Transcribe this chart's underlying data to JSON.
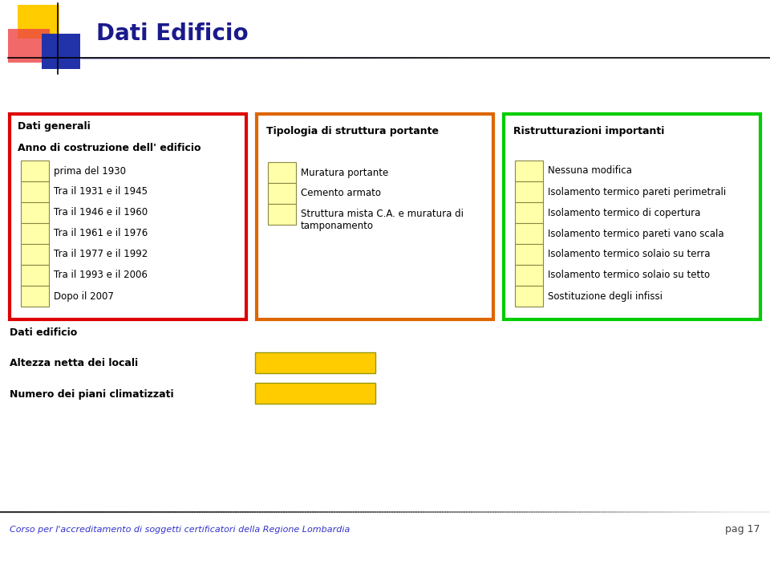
{
  "title": "Dati Edificio",
  "title_color": "#1a1a8c",
  "title_fontsize": 20,
  "bg_color": "#ffffff",
  "box1_border_color": "#dd0000",
  "box2_border_color": "#dd6600",
  "box3_border_color": "#00cc00",
  "box1_title": "Dati generali",
  "box1_subtitle": "Anno di costruzione dell' edificio",
  "box1_items": [
    "prima del 1930",
    "Tra il 1931 e il 1945",
    "Tra il 1946 e il 1960",
    "Tra il 1961 e il 1976",
    "Tra il 1977 e il 1992",
    "Tra il 1993 e il 2006",
    "Dopo il 2007"
  ],
  "box2_title": "Tipologia di struttura portante",
  "box2_items": [
    "Muratura portante",
    "Cemento armato",
    "Struttura mista C.A. e muratura di\ntamponamento"
  ],
  "box3_title": "Ristrutturazioni importanti",
  "box3_items": [
    "Nessuna modifica",
    "Isolamento termico pareti perimetrali",
    "Isolamento termico di copertura",
    "Isolamento termico pareti vano scala",
    "Isolamento termico solaio su terra",
    "Isolamento termico solaio su tetto",
    "Sostituzione degli infissi"
  ],
  "dati_edificio_label": "Dati edificio",
  "altezza_label": "Altezza netta dei locali",
  "numero_label": "Numero dei piani climatizzati",
  "input_box_color": "#ffcc00",
  "checkbox_fill": "#ffffaa",
  "checkbox_border": "#888844",
  "footer_text": "Corso per l'accreditamento di soggetti certificatori della Regione Lombardia",
  "footer_color": "#3333cc",
  "page_text": "pag 17",
  "page_color": "#444444",
  "logo_yellow": "#ffcc00",
  "logo_red": "#ee4444",
  "logo_blue": "#2233aa"
}
